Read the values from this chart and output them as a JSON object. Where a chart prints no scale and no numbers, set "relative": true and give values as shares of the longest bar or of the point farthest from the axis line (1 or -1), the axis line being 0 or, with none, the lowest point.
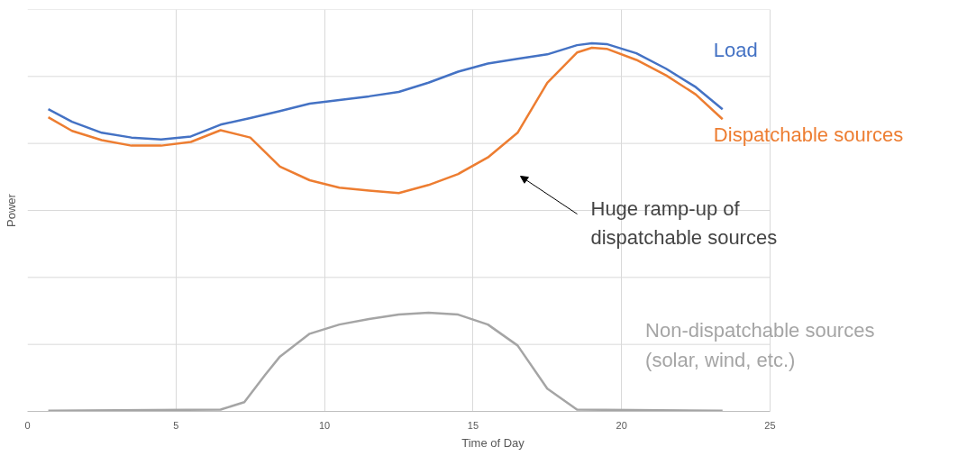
{
  "chart_data": {
    "type": "line",
    "relative": true,
    "xlabel": "Time of Day",
    "ylabel": "Power",
    "xlim": [
      0,
      25
    ],
    "xticks": [
      0,
      5,
      10,
      15,
      20,
      25
    ],
    "grid": true,
    "legend": false,
    "tick_labels": "x",
    "marker": "none",
    "line_style": "solid",
    "series": [
      {
        "name": "Load",
        "color": "#4472c4",
        "x": [
          0.7,
          1.5,
          2.5,
          3.5,
          4.5,
          5.5,
          6.5,
          7.5,
          8.5,
          9.5,
          10.5,
          11.5,
          12.5,
          13.5,
          14.5,
          15.5,
          16.5,
          17.5,
          18.5,
          19,
          19.5,
          20.5,
          21.5,
          22.5,
          23.4
        ],
        "values": [
          0.821,
          0.787,
          0.757,
          0.744,
          0.739,
          0.747,
          0.779,
          0.797,
          0.816,
          0.836,
          0.846,
          0.856,
          0.868,
          0.893,
          0.923,
          0.945,
          0.958,
          0.97,
          0.995,
          1.0,
          0.998,
          0.973,
          0.931,
          0.881,
          0.821
        ]
      },
      {
        "name": "Dispatchable sources",
        "color": "#ed7d31",
        "x": [
          0.7,
          1.5,
          2.5,
          3.5,
          4.5,
          5.5,
          6.5,
          7.5,
          8.5,
          9.5,
          10.5,
          11.5,
          12.5,
          13.5,
          14.5,
          15.5,
          16.5,
          17.5,
          18.5,
          19,
          19.5,
          20.5,
          21.5,
          22.5,
          23.4
        ],
        "values": [
          0.799,
          0.762,
          0.737,
          0.722,
          0.722,
          0.732,
          0.764,
          0.744,
          0.665,
          0.628,
          0.608,
          0.6,
          0.593,
          0.615,
          0.645,
          0.69,
          0.757,
          0.893,
          0.975,
          0.988,
          0.985,
          0.955,
          0.913,
          0.861,
          0.794
        ]
      },
      {
        "name": "Non-dispatchable sources\n(solar, wind, etc.)",
        "color": "#a5a5a5",
        "x": [
          0.7,
          6.5,
          7.3,
          8,
          8.5,
          9.5,
          10.5,
          11.5,
          12.5,
          13.5,
          14.5,
          15.5,
          16.5,
          17.5,
          18.5,
          23.4
        ],
        "values": [
          0.002,
          0.005,
          0.025,
          0.099,
          0.149,
          0.211,
          0.236,
          0.251,
          0.263,
          0.268,
          0.263,
          0.236,
          0.179,
          0.062,
          0.005,
          0.002
        ]
      }
    ],
    "annotations": [
      "Huge ramp-up of\ndispatchable sources"
    ]
  }
}
